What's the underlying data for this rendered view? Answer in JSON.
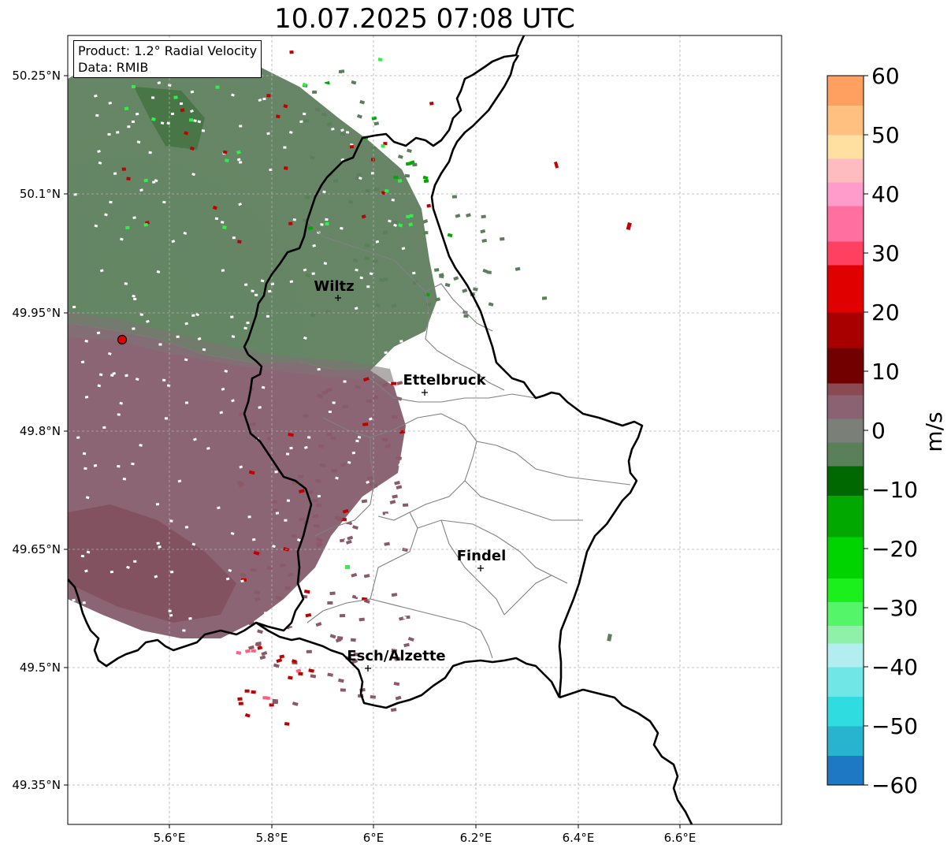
{
  "title": "10.07.2025 07:08 UTC",
  "info": {
    "product": "Product: 1.2° Radial Velocity",
    "data_source": "Data: RMIB"
  },
  "axes": {
    "x_ticks": [
      "5.6°E",
      "5.8°E",
      "6°E",
      "6.2°E",
      "6.4°E",
      "6.6°E"
    ],
    "y_ticks": [
      "50.25°N",
      "50.1°N",
      "49.95°N",
      "49.8°N",
      "49.65°N",
      "49.5°N",
      "49.35°N"
    ]
  },
  "cities": [
    {
      "name": "Wiltz",
      "lon": 5.93,
      "lat": 49.96
    },
    {
      "name": "Ettelbruck",
      "lon": 6.1,
      "lat": 49.85
    },
    {
      "name": "Findel",
      "lon": 6.21,
      "lat": 49.63
    },
    {
      "name": "Esch/Alzette",
      "lon": 5.99,
      "lat": 49.5
    }
  ],
  "radar_site": {
    "lon": 5.51,
    "lat": 49.91
  },
  "colorbar": {
    "unit": "m/s",
    "min": -60,
    "max": 60,
    "tick_labels": [
      "60",
      "50",
      "40",
      "30",
      "20",
      "10",
      "0",
      "−10",
      "−20",
      "−30",
      "−40",
      "−50",
      "−60"
    ],
    "stops": [
      {
        "from": -60,
        "to": -55,
        "color": "#1f78c4"
      },
      {
        "from": -55,
        "to": -50,
        "color": "#28b3cf"
      },
      {
        "from": -50,
        "to": -45,
        "color": "#2fdde0"
      },
      {
        "from": -45,
        "to": -40,
        "color": "#70e6e6"
      },
      {
        "from": -40,
        "to": -36,
        "color": "#b2eef0"
      },
      {
        "from": -36,
        "to": -33,
        "color": "#8ff0a8"
      },
      {
        "from": -33,
        "to": -29,
        "color": "#55f56a"
      },
      {
        "from": -29,
        "to": -25,
        "color": "#1cf01c"
      },
      {
        "from": -25,
        "to": -18,
        "color": "#00d400"
      },
      {
        "from": -18,
        "to": -11,
        "color": "#00a800"
      },
      {
        "from": -11,
        "to": -6,
        "color": "#006800"
      },
      {
        "from": -6,
        "to": -2,
        "color": "#5a805a"
      },
      {
        "from": -2,
        "to": 2,
        "color": "#7a8078"
      },
      {
        "from": 2,
        "to": 6,
        "color": "#8a6272"
      },
      {
        "from": 6,
        "to": 8,
        "color": "#8b4a52"
      },
      {
        "from": 8,
        "to": 14,
        "color": "#720000"
      },
      {
        "from": 14,
        "to": 20,
        "color": "#a80000"
      },
      {
        "from": 20,
        "to": 28,
        "color": "#e00000"
      },
      {
        "from": 28,
        "to": 32,
        "color": "#ff4060"
      },
      {
        "from": 32,
        "to": 38,
        "color": "#ff70a0"
      },
      {
        "from": 38,
        "to": 42,
        "color": "#ff9ccc"
      },
      {
        "from": 42,
        "to": 46,
        "color": "#ffbcc0"
      },
      {
        "from": 46,
        "to": 50,
        "color": "#ffe0a0"
      },
      {
        "from": 50,
        "to": 55,
        "color": "#ffc080"
      },
      {
        "from": 55,
        "to": 60,
        "color": "#ffa060"
      }
    ]
  },
  "velocity_field": {
    "approaching_color": "#5b7f5a",
    "receding_color": "#8a5a68",
    "green_color": "#00a800",
    "bright_green_color": "#2ff04a",
    "red_color": "#c00000",
    "pink_color": "#ff6080"
  },
  "colors": {
    "border_national": "#000000",
    "border_canton": "#808080",
    "grid": "#b0b0b0"
  }
}
